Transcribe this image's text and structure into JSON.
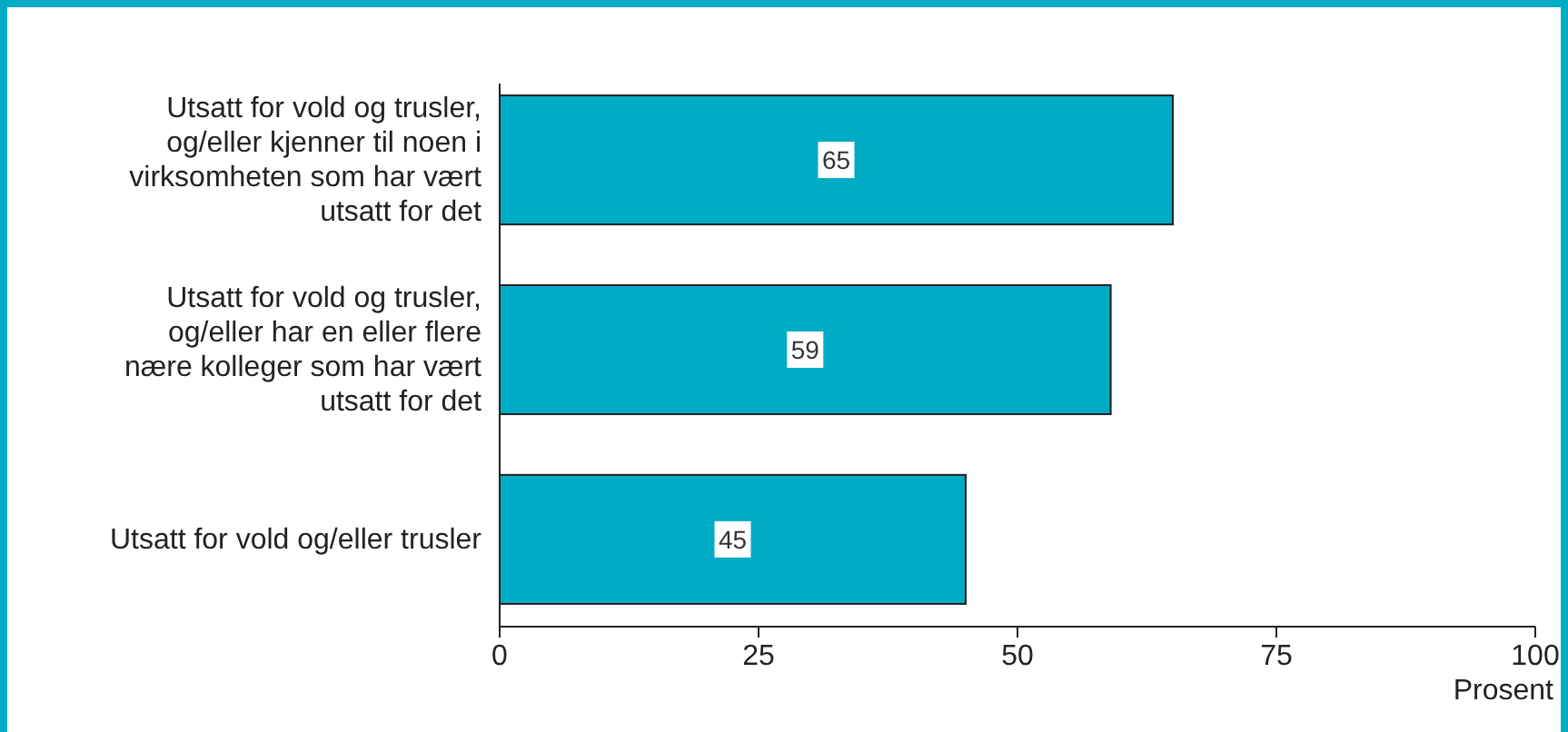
{
  "chart_data": {
    "type": "bar",
    "orientation": "horizontal",
    "categories": [
      "Utsatt for vold og trusler, og/eller kjenner til noen i virksomheten som har vært utsatt for det",
      "Utsatt for vold og trusler, og/eller har en eller flere nære kolleger som har vært utsatt for det",
      "Utsatt for vold og/eller trusler"
    ],
    "values": [
      65,
      59,
      45
    ],
    "color": "#00abc6",
    "xlim": [
      0,
      100
    ],
    "xticks": [
      0,
      25,
      50,
      75,
      100
    ],
    "xlabel": "Prosent",
    "data_labels": true
  }
}
